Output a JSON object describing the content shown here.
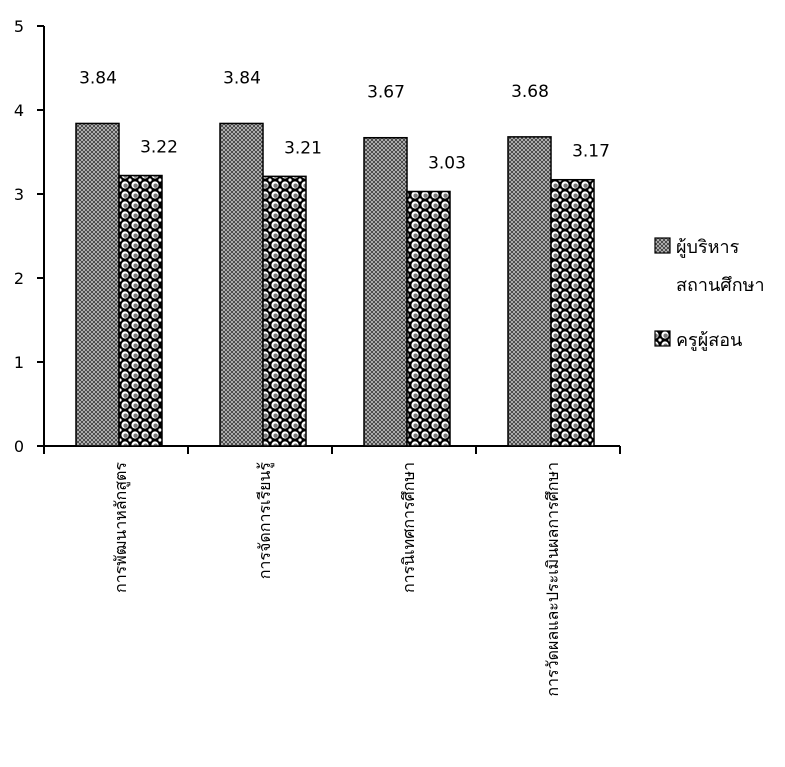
{
  "chart_data": {
    "type": "bar",
    "categories": [
      "การพัฒนาหลักสูตร",
      "การจัดการเรียนรู้",
      "การนิเทศการศึกษา",
      "การวัดผลและประเมินผลการศึกษา"
    ],
    "series": [
      {
        "name": "ผู้บริหารสถานศึกษา",
        "legend_lines": [
          "ผู้บริหาร",
          "สถานศึกษา"
        ],
        "values": [
          3.84,
          3.84,
          3.67,
          3.68
        ],
        "value_labels": [
          "3.84",
          "3.84",
          "3.67",
          "3.68"
        ],
        "pattern": "crosshatch",
        "color": "#555555"
      },
      {
        "name": "ครูผู้สอน",
        "legend_lines": [
          "ครูผู้สอน"
        ],
        "values": [
          3.22,
          3.21,
          3.03,
          3.17
        ],
        "value_labels": [
          "3.22",
          "3.21",
          "3.03",
          "3.17"
        ],
        "pattern": "dots",
        "color": "#000000"
      }
    ],
    "yticks": [
      "0",
      "1",
      "2",
      "3",
      "4",
      "5"
    ],
    "ylim": [
      0,
      5
    ],
    "grid": false,
    "legend_position": "right"
  }
}
